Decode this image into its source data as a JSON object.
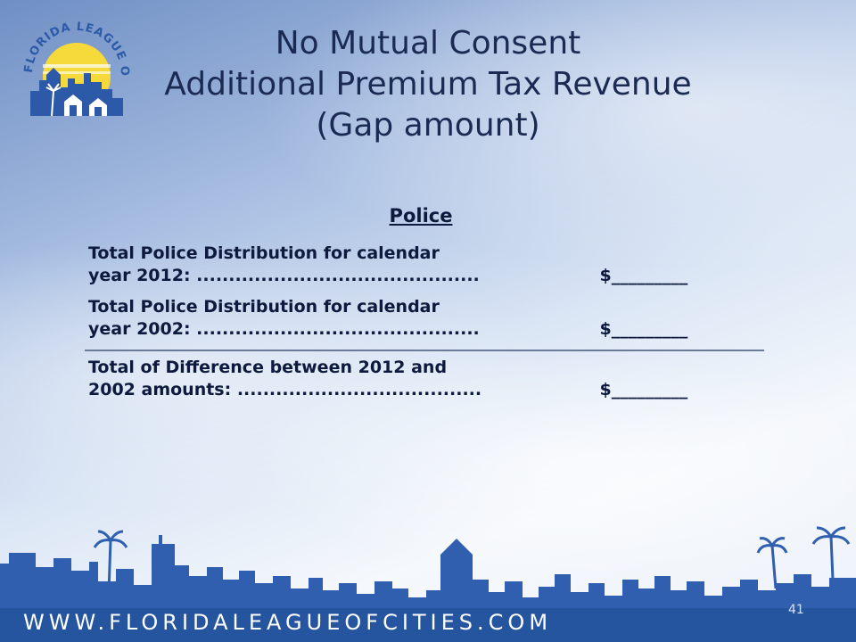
{
  "logo": {
    "text": "FLORIDA LEAGUE OF CITIES, INC.",
    "colors": {
      "sun": "#f6d93a",
      "city": "#2c5aa8",
      "ring": "#f3c21e"
    }
  },
  "title": {
    "line1": "No Mutual Consent",
    "line2": "Additional Premium Tax Revenue",
    "line3": "(Gap amount)"
  },
  "table": {
    "heading": "Police",
    "rows": [
      {
        "label_line1": "Total Police Distribution for calendar",
        "label_line2": "year 2012: ............................................",
        "value": "$_________"
      },
      {
        "label_line1": "Total Police Distribution for calendar",
        "label_line2": "year 2002: ............................................",
        "value": "$_________"
      },
      {
        "label_line1": "Total of Difference between 2012 and",
        "label_line2": "2002 amounts: ......................................",
        "value": "$_________"
      }
    ]
  },
  "footer": {
    "url": "WWW.FLORIDALEAGUEOFCITIES.COM",
    "page_number": "41"
  },
  "colors": {
    "title": "#1a2a52",
    "text": "#0d1a3d",
    "skyline": "#2f5fae",
    "skyline_dark": "#1f4c96"
  }
}
